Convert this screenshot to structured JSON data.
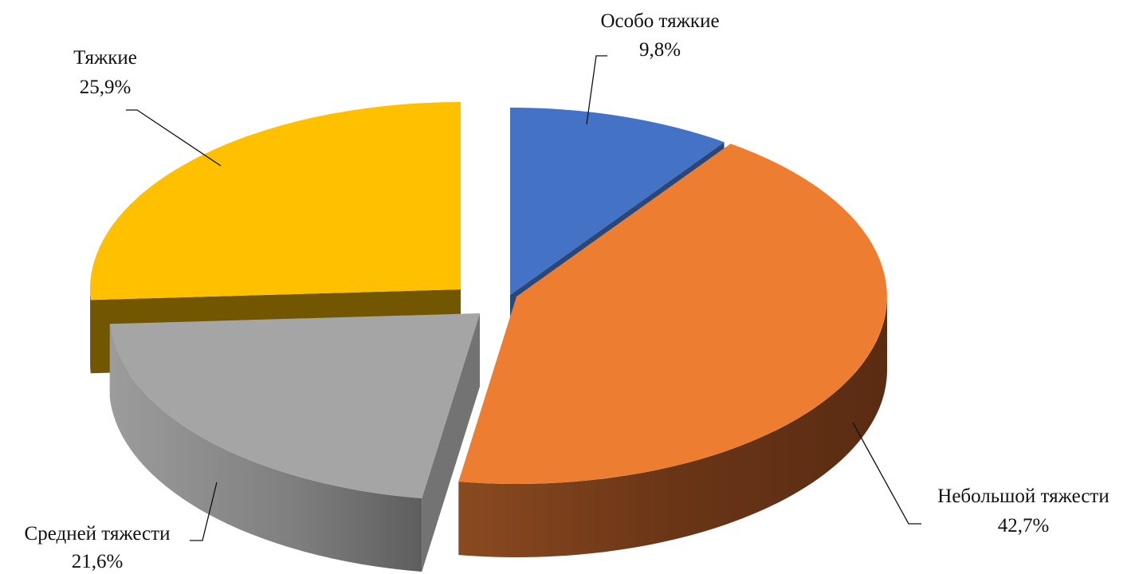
{
  "chart_data": {
    "type": "pie",
    "title": "",
    "categories": [
      "Особо тяжкие",
      "Небольшой тяжести",
      "Средней тяжести",
      "Тяжкие"
    ],
    "values": [
      9.8,
      42.7,
      21.6,
      25.9
    ],
    "value_labels": [
      "9,8%",
      "42,7%",
      "21,6%",
      "25,9%"
    ],
    "colors": [
      "#4472C4",
      "#ED7D31",
      "#A5A5A5",
      "#FFC000"
    ],
    "three_d": true,
    "exploded": true,
    "legend": "none"
  }
}
